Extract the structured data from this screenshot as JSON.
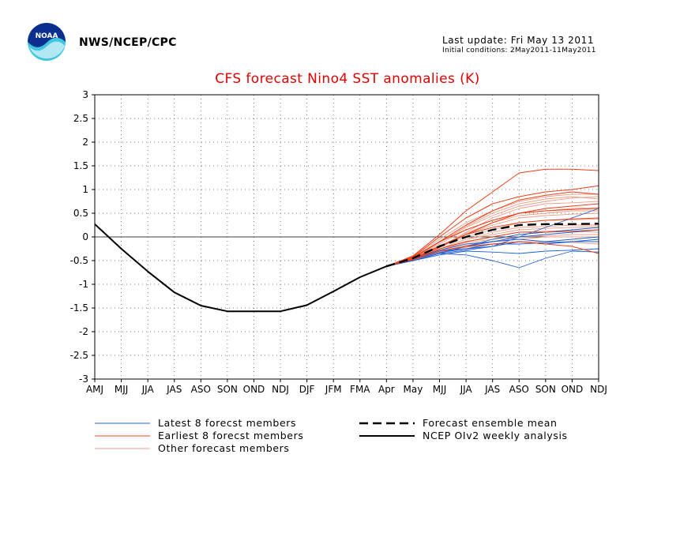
{
  "header": {
    "org": "NWS/NCEP/CPC",
    "last_update": "Last update: Fri May 13 2011",
    "initial_conditions": "Initial conditions: 2May2011-11May2011"
  },
  "logo": {
    "text": "NOAA"
  },
  "colors": {
    "title": "#e00000",
    "latest": "#1f5fd0",
    "earliest": "#e8401a",
    "other": "#ee9f88",
    "mean": "#000000",
    "analysis": "#000000"
  },
  "chart_data": {
    "type": "line",
    "title": "CFS forecast Nino4 SST anomalies (K)",
    "xlabel": "",
    "ylabel": "",
    "categories": [
      "AMJ",
      "MJJ",
      "JJA",
      "JAS",
      "ASO",
      "SON",
      "OND",
      "NDJ",
      "DJF",
      "JFM",
      "FMA",
      "Apr",
      "May",
      "MJJ",
      "JJA",
      "JAS",
      "ASO",
      "SON",
      "OND",
      "NDJ"
    ],
    "ylim": [
      -3,
      3
    ],
    "yticks": [
      "3",
      "2.5",
      "2",
      "1.5",
      "1",
      "0.5",
      "0",
      "-0.5",
      "-1",
      "-1.5",
      "-2",
      "-2.5",
      "-3"
    ],
    "grid": true,
    "zero_line": true,
    "legend": [
      {
        "label": "Latest 8 forecst members",
        "style": "latest"
      },
      {
        "label": "Earliest 8 forecst members",
        "style": "earliest"
      },
      {
        "label": "Other forecast members",
        "style": "other"
      },
      {
        "label": "Forecast ensemble mean",
        "style": "mean"
      },
      {
        "label": "NCEP OIv2 weekly analysis",
        "style": "analysis"
      }
    ],
    "analysis": {
      "x0": 0,
      "values": [
        0.27,
        -0.25,
        -0.73,
        -1.17,
        -1.45,
        -1.57,
        -1.57,
        -1.57,
        -1.44,
        -1.15,
        -0.85,
        -0.62
      ]
    },
    "ensemble_mean": {
      "x0": 11,
      "values": [
        -0.62,
        -0.45,
        -0.2,
        0.0,
        0.15,
        0.25,
        0.27,
        0.27,
        0.28
      ]
    },
    "members": {
      "x0": 11,
      "latest": [
        [
          -0.62,
          -0.5,
          -0.35,
          -0.38,
          -0.5,
          -0.65,
          -0.45,
          -0.3,
          -0.32
        ],
        [
          -0.62,
          -0.48,
          -0.3,
          -0.25,
          -0.2,
          0.0,
          0.2,
          0.4,
          0.6
        ],
        [
          -0.62,
          -0.5,
          -0.35,
          -0.2,
          -0.05,
          0.05,
          0.1,
          0.15,
          0.2
        ],
        [
          -0.62,
          -0.46,
          -0.28,
          -0.15,
          -0.1,
          -0.05,
          -0.1,
          -0.05,
          0.0
        ],
        [
          -0.62,
          -0.5,
          -0.38,
          -0.3,
          -0.32,
          -0.35,
          -0.3,
          -0.28,
          -0.25
        ],
        [
          -0.62,
          -0.47,
          -0.3,
          -0.2,
          -0.1,
          0.0,
          0.05,
          0.1,
          0.15
        ],
        [
          -0.62,
          -0.5,
          -0.35,
          -0.28,
          -0.2,
          -0.1,
          -0.15,
          -0.1,
          -0.05
        ],
        [
          -0.62,
          -0.48,
          -0.33,
          -0.25,
          -0.15,
          -0.15,
          -0.12,
          -0.1,
          -0.1
        ]
      ],
      "earliest": [
        [
          -0.62,
          -0.4,
          0.05,
          0.55,
          0.95,
          1.35,
          1.43,
          1.43,
          1.4
        ],
        [
          -0.62,
          -0.42,
          0.0,
          0.4,
          0.7,
          0.85,
          0.95,
          1.0,
          1.08
        ],
        [
          -0.62,
          -0.45,
          -0.1,
          0.25,
          0.55,
          0.78,
          0.88,
          0.95,
          0.9
        ],
        [
          -0.62,
          -0.43,
          -0.1,
          0.15,
          0.35,
          0.5,
          0.55,
          0.58,
          0.6
        ],
        [
          -0.62,
          -0.45,
          -0.2,
          0.05,
          0.2,
          0.3,
          0.35,
          0.38,
          0.4
        ],
        [
          -0.62,
          -0.47,
          -0.25,
          -0.1,
          0.0,
          0.1,
          0.1,
          0.12,
          0.15
        ],
        [
          -0.62,
          -0.48,
          -0.3,
          -0.2,
          -0.15,
          -0.1,
          -0.15,
          -0.2,
          -0.35
        ],
        [
          -0.62,
          -0.46,
          -0.22,
          0.05,
          0.3,
          0.5,
          0.6,
          0.65,
          0.7
        ]
      ],
      "other": [
        [
          -0.62,
          -0.42,
          -0.05,
          0.3,
          0.55,
          0.75,
          0.85,
          0.9,
          0.9
        ],
        [
          -0.62,
          -0.43,
          -0.1,
          0.2,
          0.45,
          0.65,
          0.75,
          0.82,
          0.85
        ],
        [
          -0.62,
          -0.44,
          -0.15,
          0.15,
          0.35,
          0.5,
          0.55,
          0.6,
          0.62
        ],
        [
          -0.62,
          -0.45,
          -0.18,
          0.05,
          0.25,
          0.4,
          0.45,
          0.48,
          0.5
        ],
        [
          -0.62,
          -0.46,
          -0.2,
          0.0,
          0.15,
          0.3,
          0.35,
          0.36,
          0.38
        ],
        [
          -0.62,
          -0.47,
          -0.25,
          -0.05,
          0.1,
          0.2,
          0.22,
          0.25,
          0.25
        ],
        [
          -0.62,
          -0.47,
          -0.28,
          -0.1,
          0.0,
          0.1,
          0.12,
          0.12,
          0.1
        ],
        [
          -0.62,
          -0.48,
          -0.3,
          -0.18,
          -0.1,
          -0.05,
          0.0,
          0.0,
          0.0
        ],
        [
          -0.62,
          -0.48,
          -0.32,
          -0.22,
          -0.15,
          -0.1,
          -0.1,
          -0.12,
          -0.15
        ],
        [
          -0.62,
          -0.46,
          -0.22,
          0.1,
          0.4,
          0.6,
          0.7,
          0.72,
          0.75
        ],
        [
          -0.62,
          -0.45,
          -0.2,
          0.08,
          0.3,
          0.45,
          0.5,
          0.55,
          0.55
        ],
        [
          -0.62,
          -0.44,
          -0.12,
          0.22,
          0.5,
          0.7,
          0.8,
          0.85,
          0.8
        ],
        [
          -0.62,
          -0.47,
          -0.26,
          -0.05,
          0.05,
          0.15,
          0.18,
          0.2,
          0.22
        ],
        [
          -0.62,
          -0.48,
          -0.28,
          -0.12,
          -0.05,
          0.0,
          0.02,
          0.05,
          0.05
        ]
      ]
    }
  }
}
